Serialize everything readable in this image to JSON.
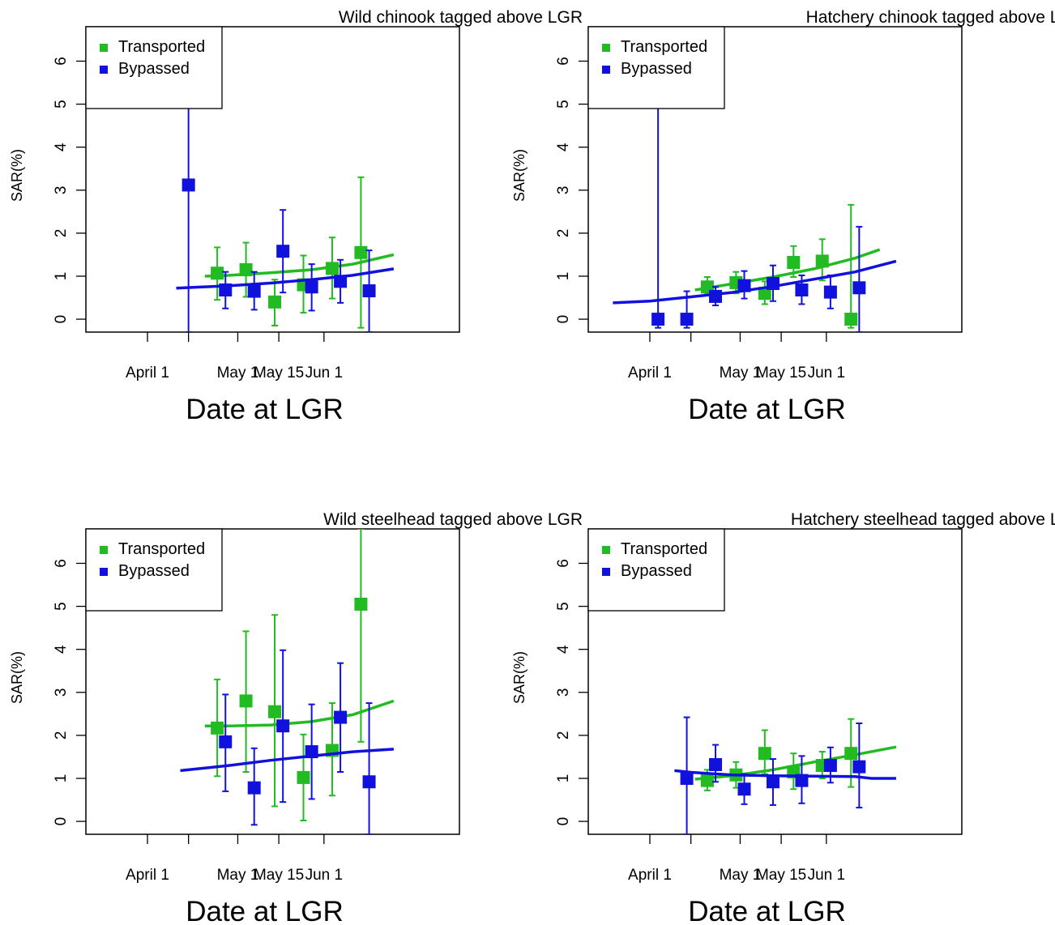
{
  "chart_data": [
    {
      "type": "scatter",
      "title": "Wild chinook tagged above LGR",
      "xlabel": "Date at LGR",
      "ylabel": "SAR(%)",
      "x_ticks": [
        "April 1",
        "",
        "May 1",
        "May 15",
        "Jun 1"
      ],
      "y_ticks": [
        "0",
        "1",
        "2",
        "3",
        "4",
        "5",
        "6"
      ],
      "ylim": [
        -0.3,
        6.8
      ],
      "xlim": [
        -5,
        86
      ],
      "legend": {
        "position": "top-left",
        "entries": [
          "Transported",
          "Bypassed"
        ]
      },
      "series": [
        {
          "name": "Transported",
          "color": "#22bb22",
          "points": [
            {
              "x": 27,
              "y": 1.07,
              "lo": 0.45,
              "hi": 1.67
            },
            {
              "x": 34,
              "y": 1.15,
              "lo": 0.52,
              "hi": 1.78
            },
            {
              "x": 41,
              "y": 0.4,
              "lo": -0.15,
              "hi": 0.92
            },
            {
              "x": 48,
              "y": 0.8,
              "lo": 0.15,
              "hi": 1.48
            },
            {
              "x": 55,
              "y": 1.18,
              "lo": 0.48,
              "hi": 1.9
            },
            {
              "x": 62,
              "y": 1.55,
              "lo": -0.2,
              "hi": 3.3
            }
          ],
          "trend": {
            "x": [
              24,
              30,
              40,
              50,
              60,
              70
            ],
            "y": [
              1.0,
              1.02,
              1.08,
              1.15,
              1.28,
              1.5
            ]
          }
        },
        {
          "name": "Bypassed",
          "color": "#1111dd",
          "points": [
            {
              "x": 20,
              "y": 3.12,
              "lo": -0.3,
              "hi": 6.8
            },
            {
              "x": 29,
              "y": 0.68,
              "lo": 0.25,
              "hi": 1.1
            },
            {
              "x": 36,
              "y": 0.65,
              "lo": 0.22,
              "hi": 1.1
            },
            {
              "x": 43,
              "y": 1.58,
              "lo": 0.62,
              "hi": 2.54
            },
            {
              "x": 50,
              "y": 0.75,
              "lo": 0.2,
              "hi": 1.28
            },
            {
              "x": 57,
              "y": 0.88,
              "lo": 0.38,
              "hi": 1.38
            },
            {
              "x": 64,
              "y": 0.66,
              "lo": -0.3,
              "hi": 1.6
            }
          ],
          "trend": {
            "x": [
              17,
              30,
              40,
              50,
              60,
              70
            ],
            "y": [
              0.72,
              0.78,
              0.84,
              0.92,
              1.02,
              1.17
            ]
          }
        }
      ]
    },
    {
      "type": "scatter",
      "title": "Hatchery chinook tagged above LGR",
      "xlabel": "Date at LGR",
      "ylabel": "SAR(%)",
      "x_ticks": [
        "April 1",
        "",
        "May 1",
        "May 15",
        "Jun 1"
      ],
      "y_ticks": [
        "0",
        "1",
        "2",
        "3",
        "4",
        "5",
        "6"
      ],
      "ylim": [
        -0.3,
        6.8
      ],
      "xlim": [
        -5,
        86
      ],
      "legend": {
        "position": "top-left",
        "entries": [
          "Transported",
          "Bypassed"
        ]
      },
      "series": [
        {
          "name": "Transported",
          "color": "#22bb22",
          "points": [
            {
              "x": 24,
              "y": 0.75,
              "lo": 0.58,
              "hi": 0.98
            },
            {
              "x": 31,
              "y": 0.85,
              "lo": 0.6,
              "hi": 1.1
            },
            {
              "x": 38,
              "y": 0.6,
              "lo": 0.35,
              "hi": 0.88
            },
            {
              "x": 45,
              "y": 1.32,
              "lo": 0.98,
              "hi": 1.7
            },
            {
              "x": 52,
              "y": 1.35,
              "lo": 0.9,
              "hi": 1.86
            },
            {
              "x": 59,
              "y": 0.0,
              "lo": -0.2,
              "hi": 2.66
            }
          ],
          "trend": {
            "x": [
              21,
              30,
              40,
              50,
              60,
              66
            ],
            "y": [
              0.68,
              0.82,
              0.98,
              1.17,
              1.42,
              1.62
            ]
          }
        },
        {
          "name": "Bypassed",
          "color": "#1111dd",
          "points": [
            {
              "x": 12,
              "y": 0.0,
              "lo": -0.2,
              "hi": 5.28
            },
            {
              "x": 19,
              "y": 0.0,
              "lo": -0.2,
              "hi": 0.65
            },
            {
              "x": 26,
              "y": 0.53,
              "lo": 0.32,
              "hi": 0.75
            },
            {
              "x": 33,
              "y": 0.78,
              "lo": 0.48,
              "hi": 1.12
            },
            {
              "x": 40,
              "y": 0.83,
              "lo": 0.42,
              "hi": 1.25
            },
            {
              "x": 47,
              "y": 0.68,
              "lo": 0.35,
              "hi": 1.02
            },
            {
              "x": 54,
              "y": 0.63,
              "lo": 0.25,
              "hi": 1.02
            },
            {
              "x": 61,
              "y": 0.73,
              "lo": -0.3,
              "hi": 2.15
            }
          ],
          "trend": {
            "x": [
              1,
              10,
              20,
              30,
              40,
              50,
              60,
              70
            ],
            "y": [
              0.38,
              0.42,
              0.52,
              0.62,
              0.76,
              0.93,
              1.1,
              1.35
            ]
          }
        }
      ]
    },
    {
      "type": "scatter",
      "title": "Wild steelhead tagged above LGR",
      "xlabel": "Date at LGR",
      "ylabel": "SAR(%)",
      "x_ticks": [
        "April 1",
        "",
        "May 1",
        "May 15",
        "Jun 1"
      ],
      "y_ticks": [
        "0",
        "1",
        "2",
        "3",
        "4",
        "5",
        "6"
      ],
      "ylim": [
        -0.3,
        6.8
      ],
      "xlim": [
        -5,
        86
      ],
      "legend": {
        "position": "top-left",
        "entries": [
          "Transported",
          "Bypassed"
        ]
      },
      "series": [
        {
          "name": "Transported",
          "color": "#22bb22",
          "points": [
            {
              "x": 27,
              "y": 2.17,
              "lo": 1.05,
              "hi": 3.3
            },
            {
              "x": 34,
              "y": 2.8,
              "lo": 1.15,
              "hi": 4.42
            },
            {
              "x": 41,
              "y": 2.55,
              "lo": 0.35,
              "hi": 4.8
            },
            {
              "x": 48,
              "y": 1.02,
              "lo": 0.02,
              "hi": 2.02
            },
            {
              "x": 55,
              "y": 1.65,
              "lo": 0.6,
              "hi": 2.75
            },
            {
              "x": 62,
              "y": 5.05,
              "lo": 1.85,
              "hi": 6.8
            }
          ],
          "trend": {
            "x": [
              24,
              30,
              40,
              50,
              60,
              70
            ],
            "y": [
              2.22,
              2.22,
              2.24,
              2.32,
              2.48,
              2.8
            ]
          }
        },
        {
          "name": "Bypassed",
          "color": "#1111dd",
          "points": [
            {
              "x": 29,
              "y": 1.85,
              "lo": 0.7,
              "hi": 2.95
            },
            {
              "x": 36,
              "y": 0.78,
              "lo": -0.08,
              "hi": 1.7
            },
            {
              "x": 43,
              "y": 2.22,
              "lo": 0.45,
              "hi": 3.98
            },
            {
              "x": 50,
              "y": 1.62,
              "lo": 0.52,
              "hi": 2.72
            },
            {
              "x": 57,
              "y": 2.42,
              "lo": 1.15,
              "hi": 3.68
            },
            {
              "x": 64,
              "y": 0.92,
              "lo": -0.3,
              "hi": 2.75
            }
          ],
          "trend": {
            "x": [
              18,
              30,
              40,
              50,
              60,
              70
            ],
            "y": [
              1.18,
              1.3,
              1.42,
              1.52,
              1.62,
              1.68
            ]
          }
        }
      ]
    },
    {
      "type": "scatter",
      "title": "Hatchery steelhead tagged above LGR",
      "xlabel": "Date at LGR",
      "ylabel": "SAR(%)",
      "x_ticks": [
        "April 1",
        "",
        "May 1",
        "May 15",
        "Jun 1"
      ],
      "y_ticks": [
        "0",
        "1",
        "2",
        "3",
        "4",
        "5",
        "6"
      ],
      "ylim": [
        -0.3,
        6.8
      ],
      "xlim": [
        -5,
        86
      ],
      "legend": {
        "position": "top-left",
        "entries": [
          "Transported",
          "Bypassed"
        ]
      },
      "series": [
        {
          "name": "Transported",
          "color": "#22bb22",
          "points": [
            {
              "x": 24,
              "y": 0.95,
              "lo": 0.72,
              "hi": 1.2
            },
            {
              "x": 31,
              "y": 1.08,
              "lo": 0.78,
              "hi": 1.38
            },
            {
              "x": 38,
              "y": 1.58,
              "lo": 1.1,
              "hi": 2.12
            },
            {
              "x": 45,
              "y": 1.15,
              "lo": 0.75,
              "hi": 1.58
            },
            {
              "x": 52,
              "y": 1.3,
              "lo": 1.0,
              "hi": 1.62
            },
            {
              "x": 59,
              "y": 1.58,
              "lo": 0.8,
              "hi": 2.38
            }
          ],
          "trend": {
            "x": [
              21,
              30,
              40,
              50,
              60,
              70
            ],
            "y": [
              0.98,
              1.06,
              1.2,
              1.38,
              1.55,
              1.73
            ]
          }
        },
        {
          "name": "Bypassed",
          "color": "#1111dd",
          "points": [
            {
              "x": 19,
              "y": 1.0,
              "lo": -0.3,
              "hi": 2.42
            },
            {
              "x": 26,
              "y": 1.32,
              "lo": 0.92,
              "hi": 1.78
            },
            {
              "x": 33,
              "y": 0.75,
              "lo": 0.4,
              "hi": 1.1
            },
            {
              "x": 40,
              "y": 0.92,
              "lo": 0.38,
              "hi": 1.45
            },
            {
              "x": 47,
              "y": 0.95,
              "lo": 0.42,
              "hi": 1.52
            },
            {
              "x": 54,
              "y": 1.3,
              "lo": 0.9,
              "hi": 1.72
            },
            {
              "x": 61,
              "y": 1.27,
              "lo": 0.32,
              "hi": 2.28
            }
          ],
          "trend": {
            "x": [
              16,
              20,
              30,
              40,
              50,
              60,
              64,
              70
            ],
            "y": [
              1.18,
              1.14,
              1.08,
              1.06,
              1.05,
              1.04,
              1.0,
              1.0
            ]
          }
        }
      ]
    }
  ]
}
